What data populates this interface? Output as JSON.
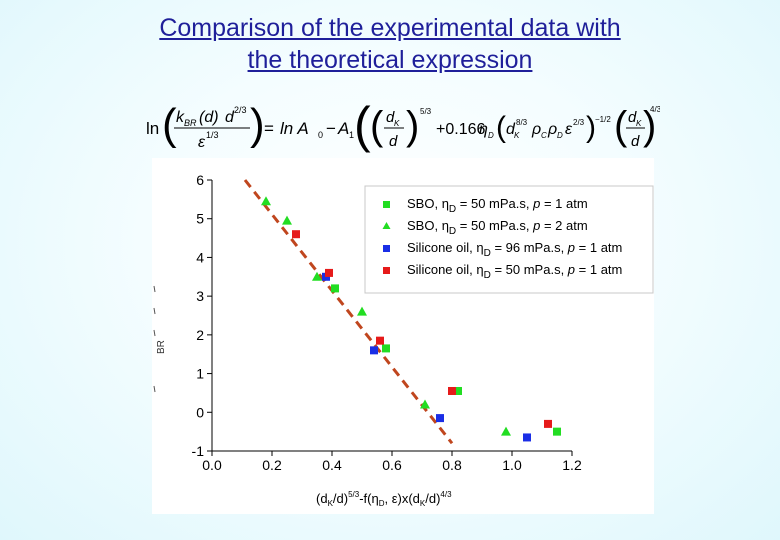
{
  "slide": {
    "title_line1": "Comparison of the experimental data with",
    "title_line2": "the theoretical expression"
  },
  "equation": {
    "ln": "ln",
    "k": "k",
    "k_sub": "BR",
    "d_arg": "(d)",
    "d": "d",
    "exp_23": "2/3",
    "eps": "ε",
    "exp_13": "1/3",
    "equals": "=",
    "lnA0": "ln A",
    "A0_sub": "0",
    "minus": "−",
    "A1": "A",
    "A1_sub": "1",
    "dK": "d",
    "K_sub": "K",
    "exp_53": "5/3",
    "plus_coef": "+0.166",
    "eta": "η",
    "eta_sub": "D",
    "exp_83": "8/3",
    "rho": "ρ",
    "rho_C": "C",
    "rho_D": "D",
    "exp_m12": "−1/2",
    "exp_43": "4/3"
  },
  "chart_data": {
    "type": "scatter",
    "xlim": [
      0.0,
      1.2
    ],
    "ylim": [
      -1,
      6
    ],
    "xticks": [
      "0.0",
      "0.2",
      "0.4",
      "0.6",
      "0.8",
      "1.0",
      "1.2"
    ],
    "yticks": [
      "-1",
      "0",
      "1",
      "2",
      "3",
      "4",
      "5",
      "6"
    ],
    "xlabel": {
      "p1": "(d",
      "s1": "K",
      "p2": "/d)",
      "e1": "5/3",
      "p3": "-f(η",
      "s2": "D",
      "p4": ", ε)x(d",
      "s3": "K",
      "p5": "/d)",
      "e2": "4/3"
    },
    "ylabel_partial": "BR",
    "grid": false,
    "legend_position": "top-right",
    "series": [
      {
        "name": "SBO, ηD = 50 mPa.s, p = 1 atm",
        "legend": {
          "a": "SBO, ",
          "eta": "η",
          "sub": "D",
          "b": " = 50 mPa.s, ",
          "p": "p",
          "c": " = 1 atm"
        },
        "marker": "square",
        "color": "#22dd22",
        "points": [
          [
            0.41,
            3.2
          ],
          [
            0.58,
            1.65
          ],
          [
            0.82,
            0.55
          ],
          [
            1.15,
            -0.5
          ]
        ]
      },
      {
        "name": "SBO, ηD = 50 mPa.s, p = 2 atm",
        "legend": {
          "a": "SBO, ",
          "eta": "η",
          "sub": "D",
          "b": " = 50 mPa.s, ",
          "p": "p",
          "c": " = 2 atm"
        },
        "marker": "triangle",
        "color": "#22dd22",
        "points": [
          [
            0.18,
            5.45
          ],
          [
            0.25,
            4.95
          ],
          [
            0.35,
            3.5
          ],
          [
            0.5,
            2.6
          ],
          [
            0.71,
            0.2
          ],
          [
            0.98,
            -0.5
          ]
        ]
      },
      {
        "name": "Silicone oil, ηD = 96 mPa.s, p = 1 atm",
        "legend": {
          "a": "Silicone oil, ",
          "eta": "η",
          "sub": "D",
          "b": " = 96 mPa.s, ",
          "p": "p",
          "c": " = 1 atm"
        },
        "marker": "square",
        "color": "#1a2ee6",
        "points": [
          [
            0.38,
            3.5
          ],
          [
            0.54,
            1.6
          ],
          [
            0.76,
            -0.15
          ],
          [
            1.05,
            -0.65
          ]
        ]
      },
      {
        "name": "Silicone oil, ηD = 50 mPa.s, p = 1 atm",
        "legend": {
          "a": "Silicone oil, ",
          "eta": "η",
          "sub": "D",
          "b": " = 50 mPa.s, ",
          "p": "p",
          "c": " = 1 atm"
        },
        "marker": "square",
        "color": "#e61a1a",
        "points": [
          [
            0.28,
            4.6
          ],
          [
            0.39,
            3.6
          ],
          [
            0.56,
            1.85
          ],
          [
            0.8,
            0.55
          ],
          [
            1.12,
            -0.3
          ]
        ]
      }
    ],
    "fit_line": {
      "style": "dashed",
      "color": "#c0461e",
      "points": [
        [
          0.11,
          6.0
        ],
        [
          0.8,
          -0.8
        ]
      ]
    }
  }
}
